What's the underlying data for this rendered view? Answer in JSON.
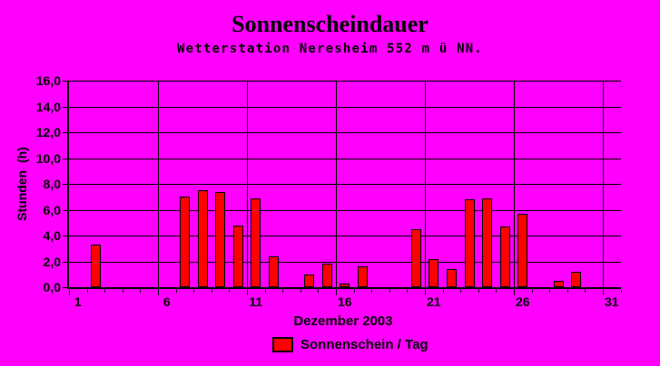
{
  "colors": {
    "background": "#FF00FF",
    "bar_fill": "#FF0000",
    "grid": "#000000",
    "text": "#000000"
  },
  "chart_data": {
    "type": "bar",
    "title": "Sonnenscheindauer",
    "subtitle": "Wetterstation Neresheim 552 m ü NN.",
    "xlabel": "Dezember 2003",
    "ylabel": "Stunden  (h)",
    "legend": [
      {
        "label": "Sonnenschein / Tag",
        "color": "#FF0000"
      }
    ],
    "legend_position": "bottom-center",
    "grid": true,
    "x": [
      1,
      2,
      3,
      4,
      5,
      6,
      7,
      8,
      9,
      10,
      11,
      12,
      13,
      14,
      15,
      16,
      17,
      18,
      19,
      20,
      21,
      22,
      23,
      24,
      25,
      26,
      27,
      28,
      29,
      30,
      31
    ],
    "values": [
      0,
      3.3,
      0,
      0,
      0,
      0,
      7.0,
      7.5,
      7.4,
      4.8,
      6.9,
      2.4,
      0,
      1.0,
      1.8,
      0.3,
      1.6,
      0,
      0,
      4.5,
      2.2,
      1.4,
      6.8,
      6.9,
      4.7,
      5.7,
      0,
      0.5,
      1.2,
      0,
      0
    ],
    "ylim": [
      0,
      16
    ],
    "ytick_step": 2,
    "ytick_labels": [
      "0,0",
      "2,0",
      "4,0",
      "6,0",
      "8,0",
      "10,0",
      "12,0",
      "14,0",
      "16,0"
    ],
    "xtick_labeled_days": [
      1,
      6,
      11,
      16,
      21,
      26,
      31
    ]
  }
}
